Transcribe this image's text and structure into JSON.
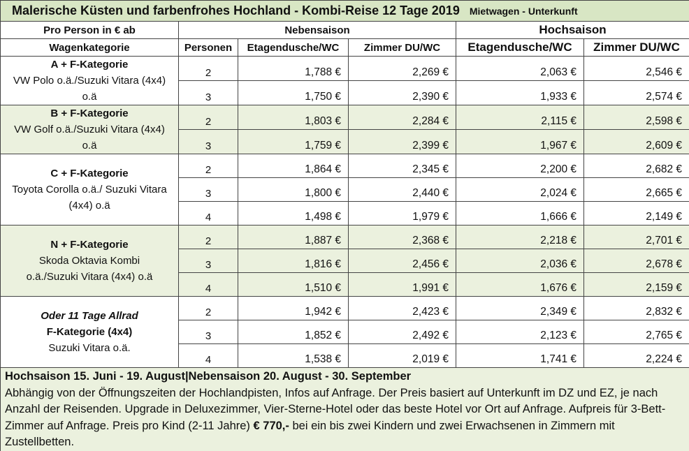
{
  "title": {
    "main": "Malerische Küsten und farbenfrohes Hochland - Kombi-Reise 12 Tage 2019",
    "sub": "Mietwagen - Unterkunft"
  },
  "header": {
    "per_person": "Pro Person in € ab",
    "season_low": "Nebensaison",
    "season_high": "Hochsaison",
    "columns": [
      "Wagenkategorie",
      "Personen",
      "Etagendusche/WC",
      "Zimmer DU/WC",
      "Etagendusche/WC",
      "Zimmer DU/WC"
    ]
  },
  "groups": [
    {
      "label": [
        "A + F-Kategorie",
        "VW Polo o.ä./Suzuki Vitara (4x4)",
        "o.ä"
      ],
      "rows": [
        [
          "2",
          "1,788 €",
          "2,269 €",
          "2,063 €",
          "2,546 €"
        ],
        [
          "3",
          "1,750 €",
          "2,390 €",
          "1,933 €",
          "2,574 €"
        ]
      ]
    },
    {
      "label": [
        "B + F-Kategorie",
        "VW Golf o.ä./Suzuki Vitara (4x4)",
        "o.ä"
      ],
      "rows": [
        [
          "2",
          "1,803 €",
          "2,284 €",
          "2,115 €",
          "2,598 €"
        ],
        [
          "3",
          "1,759 €",
          "2,399 €",
          "1,967 €",
          "2,609 €"
        ]
      ]
    },
    {
      "label": [
        "C + F-Kategorie",
        "Toyota Corolla o.ä./ Suzuki Vitara",
        "(4x4) o.ä"
      ],
      "rows": [
        [
          "2",
          "1,864 €",
          "2,345 €",
          "2,200 €",
          "2,682 €"
        ],
        [
          "3",
          "1,800 €",
          "2,440 €",
          "2,024 €",
          "2,665 €"
        ],
        [
          "4",
          "1,498 €",
          "1,979 €",
          "1,666 €",
          "2,149 €"
        ]
      ]
    },
    {
      "label": [
        "N + F-Kategorie",
        "Skoda Oktavia Kombi",
        "o.ä./Suzuki Vitara (4x4) o.ä"
      ],
      "rows": [
        [
          "2",
          "1,887 €",
          "2,368 €",
          "2,218 €",
          "2,701 €"
        ],
        [
          "3",
          "1,816 €",
          "2,456 €",
          "2,036 €",
          "2,678 €"
        ],
        [
          "4",
          "1,510 €",
          "1,991 €",
          "1,676 €",
          "2,159 €"
        ]
      ]
    },
    {
      "label": [
        "Oder 11 Tage Allrad",
        "F-Kategorie (4x4)",
        "Suzuki Vitara o.ä."
      ],
      "rows": [
        [
          "2",
          "1,942 €",
          "2,423 €",
          "2,349 €",
          "2,832 €"
        ],
        [
          "3",
          "1,852 €",
          "2,492 €",
          "2,123 €",
          "2,765 €"
        ],
        [
          "4",
          "1,538 €",
          "2,019 €",
          "1,741 €",
          "2,224 €"
        ]
      ]
    }
  ],
  "footer": {
    "dates": "Hochsaison 15. Juni - 19. August|Nebensaison 20. August - 30. September",
    "text_before": "Abhängig von der Öffnungszeiten der Hochlandpisten, Infos auf Anfrage. Der Preis basiert auf Unterkunft im DZ und EZ, je nach Anzahl der Reisenden. Upgrade in Deluxezimmer, Vier-Sterne-Hotel oder das beste Hotel vor Ort auf Anfrage. Aufpreis für 3-Bett-Zimmer auf Anfrage. Preis pro Kind (2-11 Jahre) ",
    "price": "€ 770,-",
    "text_after": " bei ein bis zwei Kindern und zwei Erwachsenen in Zimmern mit Zustellbetten."
  }
}
